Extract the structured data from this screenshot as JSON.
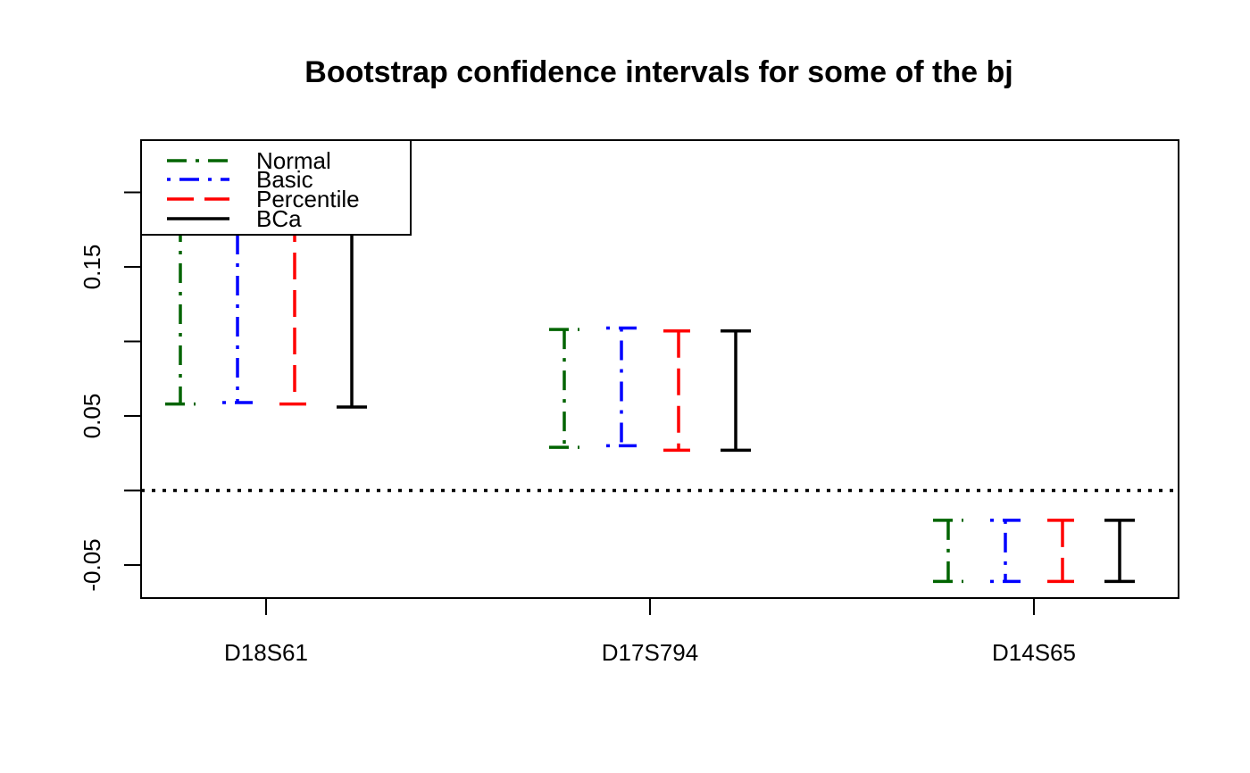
{
  "chart_data": {
    "type": "errorbar",
    "title": "Bootstrap confidence intervals for some of the bj",
    "xlabel": "",
    "ylabel": "",
    "categories": [
      "D18S61",
      "D17S794",
      "D14S65"
    ],
    "ylim": [
      -0.072,
      0.235
    ],
    "yticks": [
      -0.05,
      0.05,
      0.15
    ],
    "ytick_labels": [
      "-0.05",
      "0.05",
      "0.15"
    ],
    "yticks_unlabeled": [
      0.0,
      0.1,
      0.2
    ],
    "reference_line": {
      "y": 0.0,
      "style": "dotted",
      "color": "#000000"
    },
    "grid": false,
    "legend": {
      "position": "top-left"
    },
    "series": [
      {
        "name": "Normal",
        "color": "#006400",
        "dash": "dash-dot",
        "intervals": [
          [
            0.058,
            0.235
          ],
          [
            0.029,
            0.108
          ],
          [
            -0.061,
            -0.02
          ]
        ]
      },
      {
        "name": "Basic",
        "color": "#0000ff",
        "dash": "dot-dash",
        "intervals": [
          [
            0.059,
            0.235
          ],
          [
            0.03,
            0.109
          ],
          [
            -0.061,
            -0.02
          ]
        ]
      },
      {
        "name": "Percentile",
        "color": "#ff0000",
        "dash": "long-dash",
        "intervals": [
          [
            0.058,
            0.235
          ],
          [
            0.027,
            0.107
          ],
          [
            -0.061,
            -0.02
          ]
        ]
      },
      {
        "name": "BCa",
        "color": "#000000",
        "dash": "solid",
        "intervals": [
          [
            0.056,
            0.235
          ],
          [
            0.027,
            0.107
          ],
          [
            -0.061,
            -0.02
          ]
        ]
      }
    ]
  }
}
